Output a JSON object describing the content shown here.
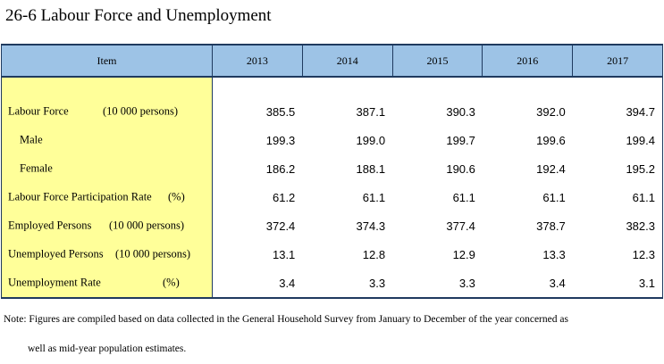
{
  "title": "26-6  Labour Force and Unemployment",
  "table": {
    "headers": [
      "Item",
      "2013",
      "2014",
      "2015",
      "2016",
      "2017"
    ],
    "rows": [
      {
        "label": "Labour Force",
        "unit": "(10 000 persons)",
        "values": [
          "385.5",
          "387.1",
          "390.3",
          "392.0",
          "394.7"
        ]
      },
      {
        "label": "Male",
        "unit": "",
        "values": [
          "199.3",
          "199.0",
          "199.7",
          "199.6",
          "199.4"
        ]
      },
      {
        "label": "Female",
        "unit": "",
        "values": [
          "186.2",
          "188.1",
          "190.6",
          "192.4",
          "195.2"
        ]
      },
      {
        "label": "Labour Force Participation Rate",
        "unit": "(%)",
        "values": [
          "61.2",
          "61.1",
          "61.1",
          "61.1",
          "61.1"
        ]
      },
      {
        "label": "Employed Persons",
        "unit": "(10 000 persons)",
        "values": [
          "372.4",
          "374.3",
          "377.4",
          "378.7",
          "382.3"
        ]
      },
      {
        "label": "Unemployed Persons",
        "unit": "(10 000 persons)",
        "values": [
          "13.1",
          "12.8",
          "12.9",
          "13.3",
          "12.3"
        ]
      },
      {
        "label": "Unemployment Rate",
        "unit": "(%)",
        "values": [
          "3.4",
          "3.3",
          "3.3",
          "3.4",
          "3.1"
        ]
      }
    ]
  },
  "note": {
    "line1": "Note: Figures are compiled based on data collected in the General Household Survey from January to December of the year concerned as",
    "line2": "well as mid-year population estimates."
  }
}
